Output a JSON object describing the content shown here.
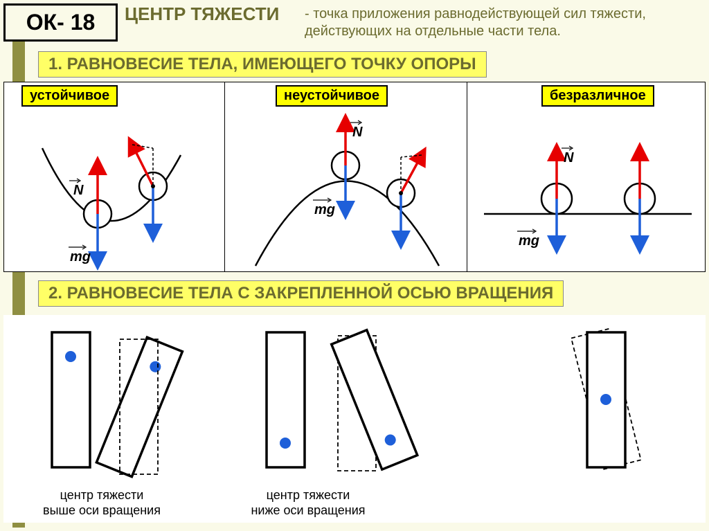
{
  "page": {
    "ok_label": "ОК- 18",
    "title": "ЦЕНТР ТЯЖЕСТИ",
    "definition": "- точка приложения равнодействующей сил тяжести, действующих на отдельные части тела.",
    "bg_color": "#fafae8",
    "band_color": "#8f8f42",
    "accent_text_color": "#6b6b2f",
    "highlight_bg": "#ffff66"
  },
  "section1": {
    "heading": "1. РАВНОВЕСИЕ ТЕЛА, ИМЕЮЩЕГО ТОЧКУ ОПОРЫ",
    "types": [
      {
        "label": "устойчивое",
        "force_N": "N",
        "force_mg": "mg"
      },
      {
        "label": "неустойчивое",
        "force_N": "N",
        "force_mg": "mg"
      },
      {
        "label": "безразличное",
        "force_N": "N",
        "force_mg": "mg"
      }
    ],
    "colors": {
      "N_arrow": "#e60000",
      "mg_arrow": "#1e5fd9",
      "line": "#000000",
      "dash": "#000000",
      "panel_bg": "#ffffff",
      "tag_bg": "#ffff00"
    },
    "stroke_widths": {
      "curve": 2.5,
      "arrow": 3,
      "dash": 1.5
    }
  },
  "section2": {
    "heading": "2. РАВНОВЕСИЕ ТЕЛА С ЗАКРЕПЛЕННОЙ ОСЬЮ ВРАЩЕНИЯ",
    "captions": [
      "центр тяжести\nвыше оси вращения",
      "центр тяжести\nниже оси вращения"
    ],
    "colors": {
      "block_stroke": "#000000",
      "block_fill": "#ffffff",
      "pivot_fill": "#1e5fd9",
      "dash": "#000000"
    },
    "stroke_widths": {
      "block": 3,
      "dash": 1.5
    }
  }
}
